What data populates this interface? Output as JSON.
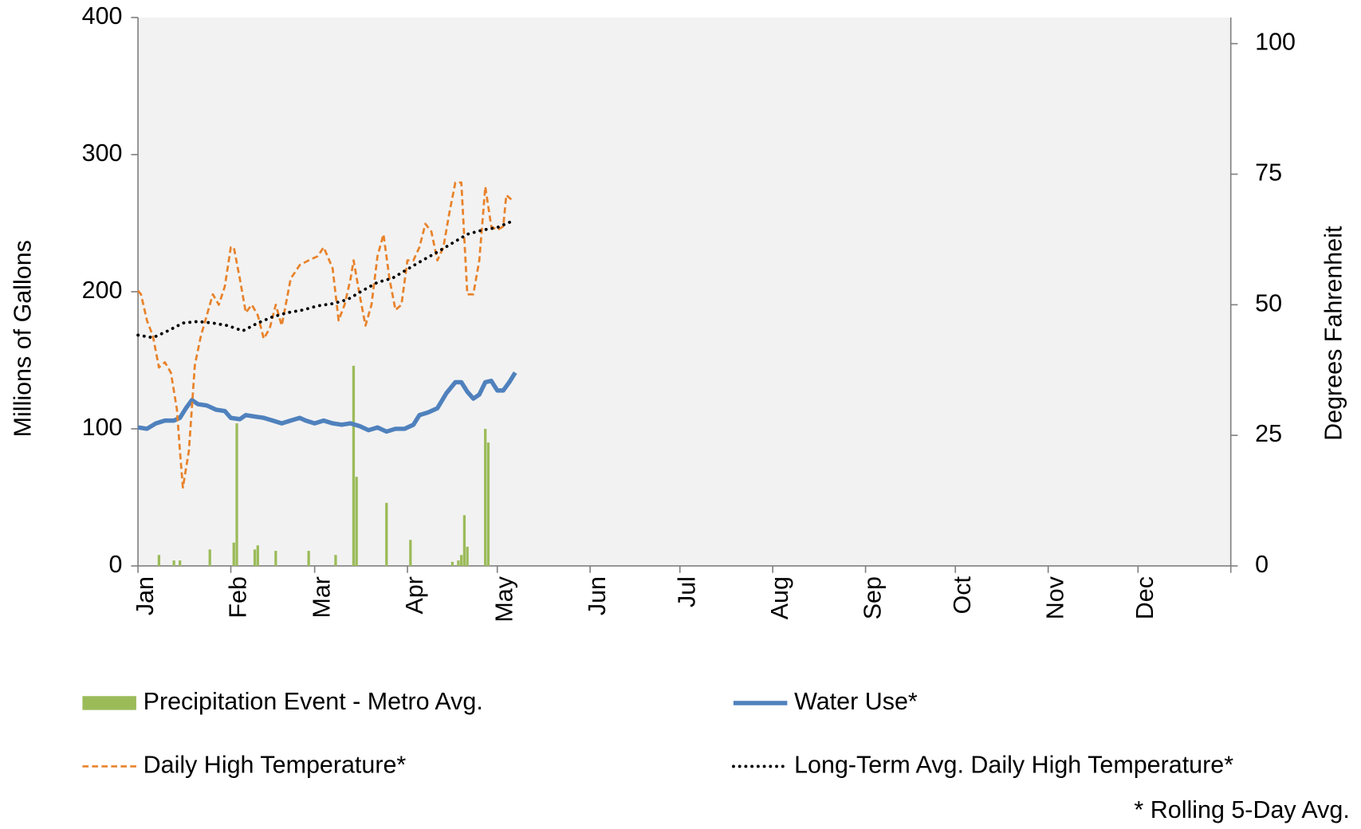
{
  "chart_data": {
    "type": "line",
    "y_label": "Millions of Gallons",
    "y2_label": "Degrees Fahrenheit",
    "note": "* Rolling 5-Day Avg.",
    "xlim": [
      0,
      365
    ],
    "xticks": [
      {
        "value": 0,
        "label": "Jan"
      },
      {
        "value": 31,
        "label": "Feb"
      },
      {
        "value": 59,
        "label": "Mar"
      },
      {
        "value": 90,
        "label": "Apr"
      },
      {
        "value": 120,
        "label": "May"
      },
      {
        "value": 151,
        "label": "Jun"
      },
      {
        "value": 181,
        "label": "Jul"
      },
      {
        "value": 212,
        "label": "Aug"
      },
      {
        "value": 243,
        "label": "Sep"
      },
      {
        "value": 273,
        "label": "Oct"
      },
      {
        "value": 304,
        "label": "Nov"
      },
      {
        "value": 334,
        "label": "Dec"
      }
    ],
    "ylim": [
      0,
      400
    ],
    "yticks": [
      0,
      100,
      200,
      300,
      400
    ],
    "y2lim": [
      0,
      105
    ],
    "y2ticks": [
      0,
      25,
      50,
      75,
      100
    ],
    "background": "#f2f2f2",
    "series": [
      {
        "name": "Precipitation Event - Metro Avg.",
        "type": "bar",
        "color": "#9bbb59",
        "x": [
          7,
          12,
          14,
          24,
          32,
          33,
          39,
          40,
          46,
          57,
          66,
          72,
          73,
          83,
          91,
          105,
          107,
          108,
          109,
          110,
          116,
          117
        ],
        "values": [
          8,
          4,
          4,
          12,
          17,
          104,
          12,
          15,
          11,
          11,
          8,
          146,
          65,
          46,
          19,
          3,
          4,
          8,
          37,
          14,
          100,
          90
        ]
      },
      {
        "name": "Water Use*",
        "type": "line",
        "dash": "solid",
        "color": "#4f81bd",
        "x": [
          0,
          3,
          6,
          9,
          12,
          14,
          16,
          18,
          20,
          23,
          26,
          29,
          31,
          34,
          36,
          39,
          42,
          45,
          48,
          51,
          54,
          56,
          59,
          62,
          65,
          68,
          71,
          74,
          77,
          80,
          83,
          86,
          89,
          92,
          94,
          97,
          100,
          103,
          106,
          108,
          110,
          112,
          114,
          116,
          118,
          120,
          122,
          124,
          126
        ],
        "values": [
          101,
          100,
          104,
          106,
          106,
          108,
          115,
          121,
          118,
          117,
          114,
          113,
          108,
          107,
          110,
          109,
          108,
          106,
          104,
          106,
          108,
          106,
          104,
          106,
          104,
          103,
          104,
          102,
          99,
          101,
          98,
          100,
          100,
          103,
          110,
          112,
          115,
          126,
          134,
          134,
          127,
          122,
          125,
          134,
          135,
          128,
          128,
          134,
          141
        ]
      },
      {
        "name": "Daily High Temperature*",
        "type": "line",
        "dash": "dashed",
        "axis": "y2",
        "color": "#e8822a",
        "x": [
          0,
          1,
          3,
          5,
          7,
          9,
          11,
          13,
          14,
          15,
          17,
          19,
          21,
          23,
          25,
          27,
          29,
          31,
          32,
          34,
          36,
          38,
          40,
          42,
          44,
          46,
          48,
          51,
          54,
          57,
          60,
          62,
          65,
          67,
          69,
          71,
          72,
          74,
          76,
          78,
          80,
          82,
          84,
          86,
          88,
          90,
          92,
          94,
          96,
          98,
          100,
          102,
          104,
          106,
          108,
          110,
          112,
          114,
          116,
          118,
          120,
          122,
          123,
          125
        ],
        "values": [
          52.7,
          52,
          47,
          44,
          38,
          39,
          37,
          30,
          22,
          15,
          22,
          38.5,
          44,
          48,
          52,
          50,
          53.5,
          61,
          61,
          55,
          48.5,
          50,
          48,
          43.5,
          45.5,
          50,
          46,
          55,
          57.6,
          58.5,
          59.3,
          61,
          57,
          47,
          50,
          55,
          58.5,
          52,
          46,
          50,
          59.3,
          63.5,
          55,
          49,
          50,
          58.5,
          58.5,
          61,
          65.5,
          64,
          58.5,
          61,
          67.6,
          73.4,
          73.4,
          52,
          52,
          58.5,
          72.6,
          65,
          64.3,
          65,
          71,
          70
        ]
      },
      {
        "name": "Long-Term Avg. Daily High Temperature*",
        "type": "line",
        "dash": "dotted",
        "axis": "y2",
        "color": "#000000",
        "x": [
          0,
          5,
          10,
          15,
          20,
          25,
          30,
          35,
          40,
          45,
          50,
          55,
          60,
          65,
          70,
          75,
          80,
          85,
          90,
          95,
          100,
          105,
          110,
          115,
          120,
          125
        ],
        "values": [
          44.2,
          43.7,
          45,
          46.5,
          46.8,
          46.5,
          46,
          45,
          46.5,
          47.7,
          48.5,
          49,
          49.8,
          50.2,
          51,
          52.7,
          54.3,
          55.1,
          56.8,
          58.5,
          60.1,
          61.8,
          63.5,
          64.3,
          64.8,
          66
        ]
      }
    ]
  }
}
